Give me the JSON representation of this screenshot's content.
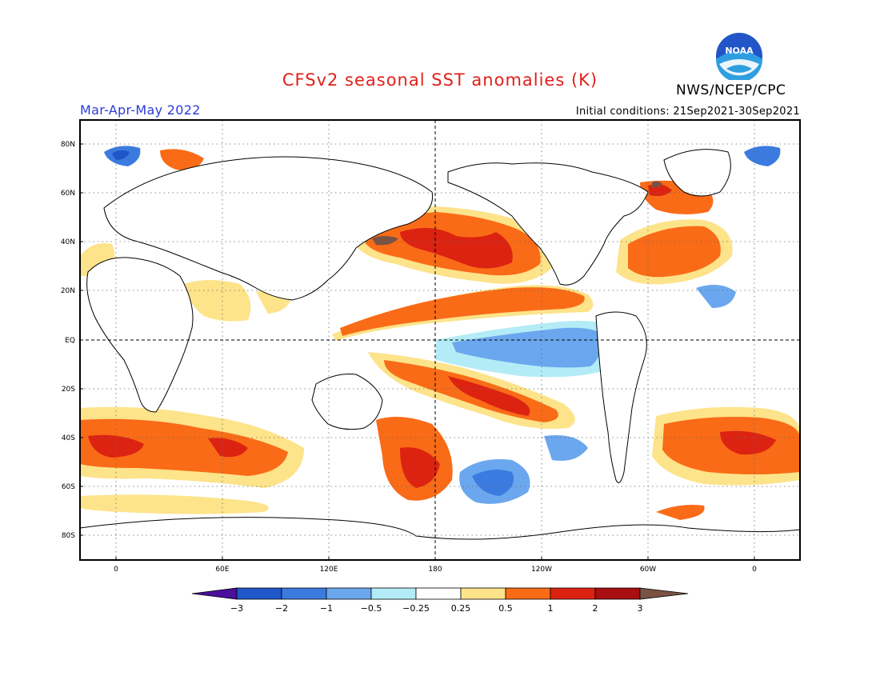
{
  "header": {
    "title": "CFSv2 seasonal SST anomalies (K)",
    "agency": "NWS/NCEP/CPC",
    "season": "Mar-Apr-May 2022",
    "initial_conditions": "Initial conditions: 21Sep2021-30Sep2021",
    "logo_text": "NOAA"
  },
  "colors": {
    "title": "#e0201a",
    "season": "#2a3cd6"
  },
  "map": {
    "lat_labels": [
      "80N",
      "60N",
      "40N",
      "20N",
      "EQ",
      "20S",
      "40S",
      "60S",
      "80S"
    ],
    "lon_labels": [
      "0",
      "60E",
      "120E",
      "180",
      "120W",
      "60W",
      "0"
    ]
  },
  "colorbar": {
    "labels": [
      "−3",
      "−2",
      "−1",
      "−0.5",
      "−0.25",
      "0.25",
      "0.5",
      "1",
      "2",
      "3"
    ],
    "bins": [
      {
        "color": "#4a0f9c"
      },
      {
        "color": "#1f56c8"
      },
      {
        "color": "#3b7be0"
      },
      {
        "color": "#6ba7ee"
      },
      {
        "color": "#b3ecf6"
      },
      {
        "color": "#ffffff"
      },
      {
        "color": "#fde38a"
      },
      {
        "color": "#fa6b17"
      },
      {
        "color": "#dc2312"
      },
      {
        "color": "#a80f10"
      },
      {
        "color": "#7a5244"
      }
    ]
  }
}
